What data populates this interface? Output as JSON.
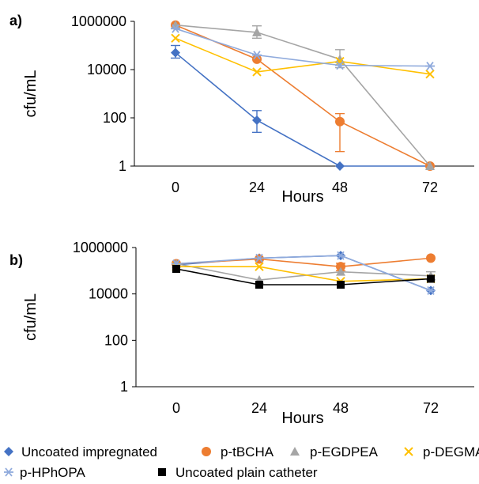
{
  "chart_data": [
    {
      "panel_label": "a)",
      "type": "line",
      "xlabel": "Hours",
      "ylabel": "cfu/mL",
      "x": [
        0,
        24,
        48,
        72
      ],
      "x_tick_labels": [
        "0",
        "24",
        "48",
        "72"
      ],
      "y_scale": "log",
      "ylim": [
        1,
        1000000
      ],
      "y_tick_labels": [
        "1",
        "100",
        "10000",
        "1000000"
      ],
      "grid": false,
      "series": [
        {
          "name": "Uncoated impregnated",
          "color": "#4472C4",
          "marker": "diamond",
          "values": [
            50000,
            80,
            1,
            1
          ],
          "err_lo": [
            20000,
            55,
            0,
            0
          ],
          "err_hi": [
            50000,
            120,
            0,
            0
          ]
        },
        {
          "name": "p-tBCHA",
          "color": "#ED7D31",
          "marker": "circle",
          "values": [
            700000,
            27000,
            70,
            1
          ],
          "err_lo": [
            0,
            0,
            66,
            0
          ],
          "err_hi": [
            0,
            0,
            80,
            0
          ]
        },
        {
          "name": "p-EGDPEA",
          "color": "#A5A5A5",
          "marker": "triangle",
          "values": [
            700000,
            350000,
            27000,
            1
          ],
          "err_lo": [
            0,
            150000,
            15000,
            0
          ],
          "err_hi": [
            0,
            300000,
            40000,
            0
          ]
        },
        {
          "name": "p-DEGMA",
          "color": "#FFC000",
          "marker": "x",
          "values": [
            200000,
            8000,
            22000,
            6500
          ],
          "err_lo": [
            0,
            0,
            0,
            0
          ],
          "err_hi": [
            0,
            0,
            0,
            0
          ]
        },
        {
          "name": "p-HPhOPA",
          "color": "#8FAADC",
          "marker": "asterisk",
          "values": [
            500000,
            40000,
            15000,
            14000
          ],
          "err_lo": [
            0,
            0,
            0,
            0
          ],
          "err_hi": [
            0,
            0,
            0,
            0
          ]
        }
      ]
    },
    {
      "panel_label": "b)",
      "type": "line",
      "xlabel": "Hours",
      "ylabel": "cfu/mL",
      "x": [
        0,
        24,
        48,
        72
      ],
      "x_tick_labels": [
        "0",
        "24",
        "48",
        "72"
      ],
      "y_scale": "log",
      "ylim": [
        1,
        1000000
      ],
      "y_tick_labels": [
        "1",
        "100",
        "10000",
        "1000000"
      ],
      "grid": false,
      "series": [
        {
          "name": "Uncoated impregnated",
          "color": "#4472C4",
          "marker": "diamond",
          "values": [
            180000,
            350000,
            450000,
            14000
          ],
          "err_lo": [
            0,
            0,
            0,
            0
          ],
          "err_hi": [
            0,
            0,
            0,
            0
          ]
        },
        {
          "name": "p-tBCHA",
          "color": "#ED7D31",
          "marker": "circle",
          "values": [
            200000,
            320000,
            150000,
            350000
          ],
          "err_lo": [
            0,
            0,
            50000,
            0
          ],
          "err_hi": [
            0,
            0,
            60000,
            0
          ]
        },
        {
          "name": "p-EGDPEA",
          "color": "#A5A5A5",
          "marker": "triangle",
          "values": [
            200000,
            40000,
            90000,
            60000
          ],
          "err_lo": [
            0,
            0,
            0,
            20000
          ],
          "err_hi": [
            0,
            0,
            0,
            30000
          ]
        },
        {
          "name": "p-DEGMA",
          "color": "#FFC000",
          "marker": "x",
          "values": [
            150000,
            150000,
            35000,
            45000
          ],
          "err_lo": [
            0,
            0,
            0,
            0
          ],
          "err_hi": [
            0,
            0,
            0,
            0
          ]
        },
        {
          "name": "p-HPhOPA",
          "color": "#8FAADC",
          "marker": "asterisk",
          "values": [
            200000,
            350000,
            450000,
            14000
          ],
          "err_lo": [
            0,
            0,
            0,
            0
          ],
          "err_hi": [
            0,
            0,
            0,
            0
          ]
        },
        {
          "name": "Uncoated plain catheter",
          "color": "#000000",
          "marker": "square",
          "values": [
            120000,
            25000,
            25000,
            45000
          ],
          "err_lo": [
            0,
            0,
            0,
            0
          ],
          "err_hi": [
            0,
            0,
            0,
            0
          ]
        }
      ]
    }
  ],
  "legend": {
    "placement": "bottom",
    "entries": [
      {
        "name": "Uncoated impregnated",
        "color": "#4472C4",
        "marker": "diamond"
      },
      {
        "name": "p-tBCHA",
        "color": "#ED7D31",
        "marker": "circle"
      },
      {
        "name": "p-EGDPEA",
        "color": "#A5A5A5",
        "marker": "triangle"
      },
      {
        "name": "p-DEGMA",
        "color": "#FFC000",
        "marker": "x"
      },
      {
        "name": "p-HPhOPA",
        "color": "#8FAADC",
        "marker": "asterisk"
      },
      {
        "name": "Uncoated plain catheter",
        "color": "#000000",
        "marker": "square"
      }
    ]
  }
}
